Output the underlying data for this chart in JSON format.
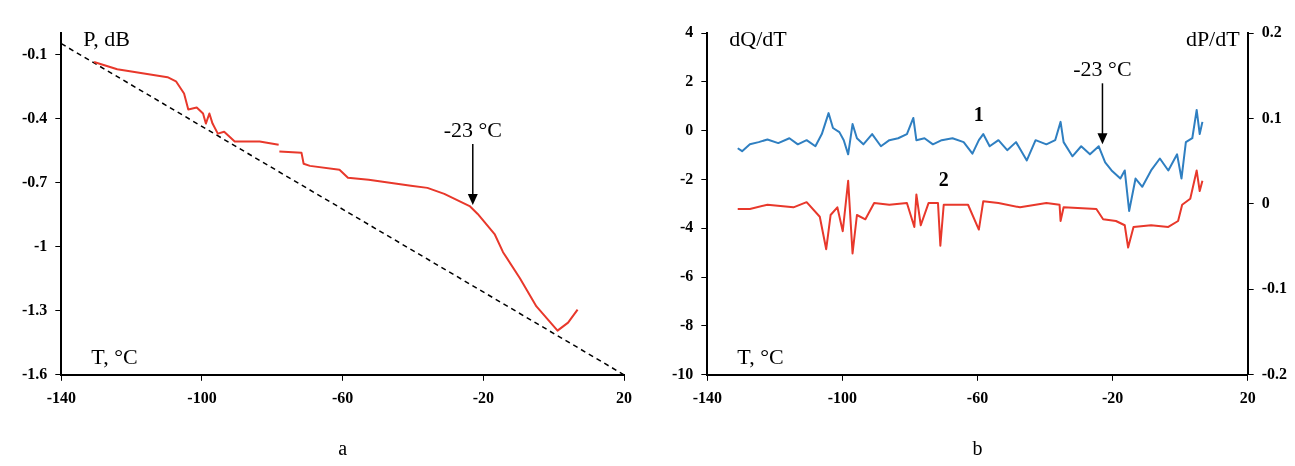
{
  "chart_data": [
    {
      "type": "line",
      "ylabel": "P, dB",
      "xlabel": "T, °C",
      "xlim": [
        -140,
        20
      ],
      "xticks": [
        -140,
        -100,
        -60,
        -20,
        20
      ],
      "ylim": [
        -1.6,
        0
      ],
      "yticks": [
        -1.6,
        -1.3,
        -1,
        -0.7,
        -0.4,
        -0.1
      ],
      "marker": "none",
      "annotations": [
        {
          "text": "-23 °C",
          "x": -23,
          "y": -0.81
        },
        "a"
      ],
      "series": [
        {
          "color": "#e8382b",
          "x": [
            -130.7,
            -124.1,
            -109.8,
            -107.4,
            -105.1,
            -103.9,
            -101.5,
            -99.7,
            -98.9,
            -97.9,
            -97.0,
            -95.5,
            -93.7,
            -90.7,
            -83.6,
            -78.2,
            -78.1,
            -78.0,
            -71.7,
            -71.1,
            -69.3,
            -60.9,
            -58.5,
            -52.6,
            -40.6,
            -35.9,
            -31.1,
            -23.9,
            -21.6,
            -16.8,
            -14.4,
            -9.6,
            -4.9,
            1.1,
            4.1,
            6.8
          ],
          "values": [
            -0.136,
            -0.17,
            -0.207,
            -0.226,
            -0.283,
            -0.358,
            -0.349,
            -0.377,
            -0.424,
            -0.377,
            -0.424,
            -0.471,
            -0.462,
            -0.508,
            -0.508,
            -0.523,
            null,
            -0.555,
            -0.561,
            -0.612,
            -0.622,
            -0.64,
            -0.678,
            -0.687,
            -0.715,
            -0.725,
            -0.753,
            -0.81,
            -0.847,
            -0.941,
            -1.026,
            -1.148,
            -1.28,
            -1.393,
            -1.356,
            -1.295
          ]
        },
        {
          "color": "#000000",
          "line_style": "dashed",
          "x": [
            -140,
            20
          ],
          "values": [
            -0.05,
            -1.6
          ]
        }
      ]
    },
    {
      "type": "line",
      "ylabel": "dQ/dT",
      "y2label": "dP/dT",
      "xlabel": "T, °C",
      "xlim": [
        -140,
        20
      ],
      "xticks": [
        -140,
        -100,
        -60,
        -20,
        20
      ],
      "ylim": [
        -10,
        4
      ],
      "yticks": [
        -10,
        -8,
        -6,
        -4,
        -2,
        0,
        2,
        4
      ],
      "y2lim": [
        -0.2,
        0.2
      ],
      "y2ticks": [
        -0.2,
        -0.1,
        0,
        0.1,
        0.2
      ],
      "marker": "none",
      "annotations": [
        {
          "text": "-23 °C",
          "x": -23,
          "y": -0.6
        },
        "b"
      ],
      "series": [
        {
          "name": "1",
          "color": "#2f7fc1",
          "x": [
            -131.0,
            -129.7,
            -127.4,
            -124.8,
            -122.2,
            -119.0,
            -115.7,
            -113.2,
            -110.6,
            -108.0,
            -106.1,
            -104.1,
            -102.8,
            -100.9,
            -99.6,
            -98.3,
            -97.0,
            -95.7,
            -93.8,
            -91.2,
            -88.6,
            -86.1,
            -83.5,
            -80.9,
            -79.0,
            -78.1,
            -75.7,
            -73.2,
            -70.6,
            -67.4,
            -64.1,
            -61.5,
            -59.6,
            -58.3,
            -56.4,
            -53.8,
            -51.2,
            -48.6,
            -45.4,
            -42.8,
            -39.6,
            -37.0,
            -35.4,
            -34.5,
            -31.9,
            -29.3,
            -26.7,
            -24.1,
            -22.2,
            -20.3,
            -17.7,
            -16.4,
            -15.1,
            -13.2,
            -11.2,
            -8.6,
            -6.0,
            -3.5,
            -0.9,
            0.4,
            1.7,
            3.6,
            4.9,
            5.8,
            6.6
          ],
          "values": [
            -0.72,
            -0.84,
            -0.56,
            -0.47,
            -0.36,
            -0.51,
            -0.31,
            -0.56,
            -0.39,
            -0.64,
            -0.14,
            0.72,
            0.11,
            -0.06,
            -0.39,
            -0.97,
            0.27,
            -0.31,
            -0.56,
            -0.14,
            -0.64,
            -0.39,
            -0.31,
            -0.14,
            0.52,
            -0.39,
            -0.31,
            -0.56,
            -0.39,
            -0.31,
            -0.47,
            -0.94,
            -0.39,
            -0.14,
            -0.64,
            -0.39,
            -0.8,
            -0.47,
            -1.22,
            -0.39,
            -0.56,
            -0.39,
            0.36,
            -0.47,
            -1.05,
            -0.64,
            -0.97,
            -0.64,
            -1.3,
            -1.63,
            -1.96,
            -1.63,
            -3.29,
            -1.96,
            -2.3,
            -1.63,
            -1.14,
            -1.63,
            -0.97,
            -1.96,
            -0.47,
            -0.31,
            0.85,
            -0.14,
            0.36
          ]
        },
        {
          "name": "2",
          "color": "#e8382b",
          "axis": "y2",
          "x": [
            -131.0,
            -127.4,
            -122.2,
            -114.5,
            -110.6,
            -106.7,
            -104.8,
            -103.5,
            -101.5,
            -99.9,
            -98.3,
            -97.0,
            -95.7,
            -93.2,
            -90.6,
            -86.1,
            -80.9,
            -78.7,
            -78.1,
            -76.8,
            -74.5,
            -71.7,
            -71.0,
            -70.0,
            -62.8,
            -59.6,
            -58.3,
            -53.8,
            -47.4,
            -39.6,
            -35.7,
            -35.4,
            -34.5,
            -24.8,
            -22.8,
            -19.0,
            -16.4,
            -15.4,
            -13.8,
            -8.6,
            -3.5,
            -0.6,
            0.6,
            3.0,
            4.9,
            5.8,
            6.6
          ],
          "values": [
            -0.006,
            -0.006,
            -0.001,
            -0.004,
            0.002,
            -0.015,
            -0.053,
            -0.013,
            -0.004,
            -0.032,
            0.027,
            -0.058,
            -0.013,
            -0.018,
            0.001,
            -0.001,
            0.001,
            -0.027,
            0.011,
            -0.025,
            0.001,
            0.001,
            -0.049,
            -0.001,
            -0.001,
            -0.03,
            0.003,
            0.001,
            -0.004,
            0.001,
            -0.001,
            -0.02,
            -0.004,
            -0.006,
            -0.018,
            -0.02,
            -0.025,
            -0.051,
            -0.027,
            -0.025,
            -0.027,
            -0.02,
            -0.001,
            0.006,
            0.039,
            0.015,
            0.027
          ]
        }
      ]
    }
  ]
}
